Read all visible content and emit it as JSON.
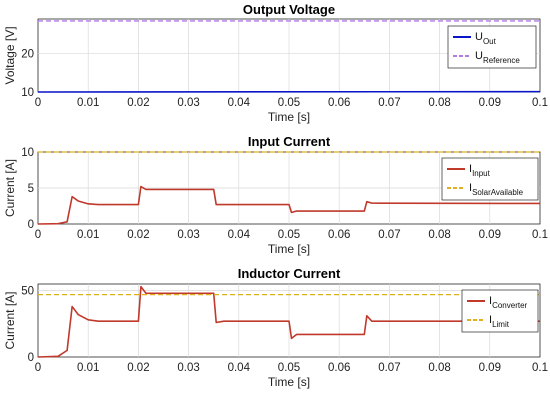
{
  "chart_data": [
    {
      "type": "line",
      "title": "Output Voltage",
      "xlabel": "Time [s]",
      "ylabel": "Voltage [V]",
      "xlim": [
        0,
        0.1
      ],
      "ylim": [
        10,
        29
      ],
      "xticks": [
        0,
        0.01,
        0.02,
        0.03,
        0.04,
        0.05,
        0.06,
        0.07,
        0.08,
        0.09,
        0.1
      ],
      "yticks": [
        10,
        20
      ],
      "ytick_labels": [
        "10",
        "20"
      ],
      "grid": true,
      "legend_position": "top-right",
      "series": [
        {
          "name": "Out",
          "prefix": "U",
          "color": "#0b15c8",
          "style": "solid",
          "points": [
            [
              0,
              10.0
            ],
            [
              0.1,
              10.1
            ]
          ]
        },
        {
          "name": "Reference",
          "prefix": "U",
          "color": "#b07ae8",
          "style": "dashed",
          "points": [
            [
              0,
              28.5
            ],
            [
              0.1,
              28.5
            ]
          ]
        }
      ]
    },
    {
      "type": "line",
      "title": "Input Current",
      "xlabel": "Time [s]",
      "ylabel": "Current [A]",
      "xlim": [
        0,
        0.1
      ],
      "ylim": [
        0,
        10
      ],
      "xticks": [
        0,
        0.01,
        0.02,
        0.03,
        0.04,
        0.05,
        0.06,
        0.07,
        0.08,
        0.09,
        0.1
      ],
      "yticks": [
        0,
        5,
        10
      ],
      "ytick_labels": [
        "0",
        "5",
        "10"
      ],
      "grid": true,
      "legend_position": "top-right",
      "series": [
        {
          "name": "Input",
          "prefix": "I",
          "color": "#c0392b",
          "style": "solid",
          "points": [
            [
              0,
              0
            ],
            [
              0.004,
              0.05
            ],
            [
              0.0058,
              0.3
            ],
            [
              0.0068,
              3.8
            ],
            [
              0.008,
              3.2
            ],
            [
              0.01,
              2.8
            ],
            [
              0.012,
              2.7
            ],
            [
              0.02,
              2.7
            ],
            [
              0.0205,
              5.2
            ],
            [
              0.0215,
              4.8
            ],
            [
              0.035,
              4.8
            ],
            [
              0.0355,
              2.7
            ],
            [
              0.05,
              2.7
            ],
            [
              0.0505,
              1.6
            ],
            [
              0.0515,
              1.8
            ],
            [
              0.065,
              1.8
            ],
            [
              0.0655,
              3.1
            ],
            [
              0.0665,
              2.9
            ],
            [
              0.1,
              2.85
            ]
          ]
        },
        {
          "name": "SolarAvailable",
          "prefix": "I",
          "color": "#e0b020",
          "style": "dashed",
          "points": [
            [
              0,
              10
            ],
            [
              0.1,
              10
            ]
          ]
        }
      ]
    },
    {
      "type": "line",
      "title": "Inductor Current",
      "xlabel": "Time [s]",
      "ylabel": "Current [A]",
      "xlim": [
        0,
        0.1
      ],
      "ylim": [
        0,
        55
      ],
      "xticks": [
        0,
        0.01,
        0.02,
        0.03,
        0.04,
        0.05,
        0.06,
        0.07,
        0.08,
        0.09,
        0.1
      ],
      "yticks": [
        0,
        50
      ],
      "ytick_labels": [
        "0",
        "50"
      ],
      "grid": true,
      "legend_position": "top-right",
      "series": [
        {
          "name": "Converter",
          "prefix": "I",
          "color": "#c0392b",
          "style": "solid",
          "points": [
            [
              0,
              0
            ],
            [
              0.004,
              0.5
            ],
            [
              0.0058,
              5
            ],
            [
              0.0068,
              38
            ],
            [
              0.008,
              32
            ],
            [
              0.01,
              28
            ],
            [
              0.012,
              27
            ],
            [
              0.02,
              27
            ],
            [
              0.0205,
              53
            ],
            [
              0.0215,
              48
            ],
            [
              0.035,
              48
            ],
            [
              0.0355,
              26
            ],
            [
              0.037,
              27
            ],
            [
              0.05,
              27
            ],
            [
              0.0505,
              14
            ],
            [
              0.0515,
              17
            ],
            [
              0.065,
              17
            ],
            [
              0.0655,
              31
            ],
            [
              0.0665,
              27
            ],
            [
              0.1,
              27
            ]
          ]
        },
        {
          "name": "Limit",
          "prefix": "I",
          "color": "#e0b020",
          "style": "dashed",
          "points": [
            [
              0,
              47
            ],
            [
              0.1,
              47
            ]
          ]
        }
      ]
    }
  ]
}
